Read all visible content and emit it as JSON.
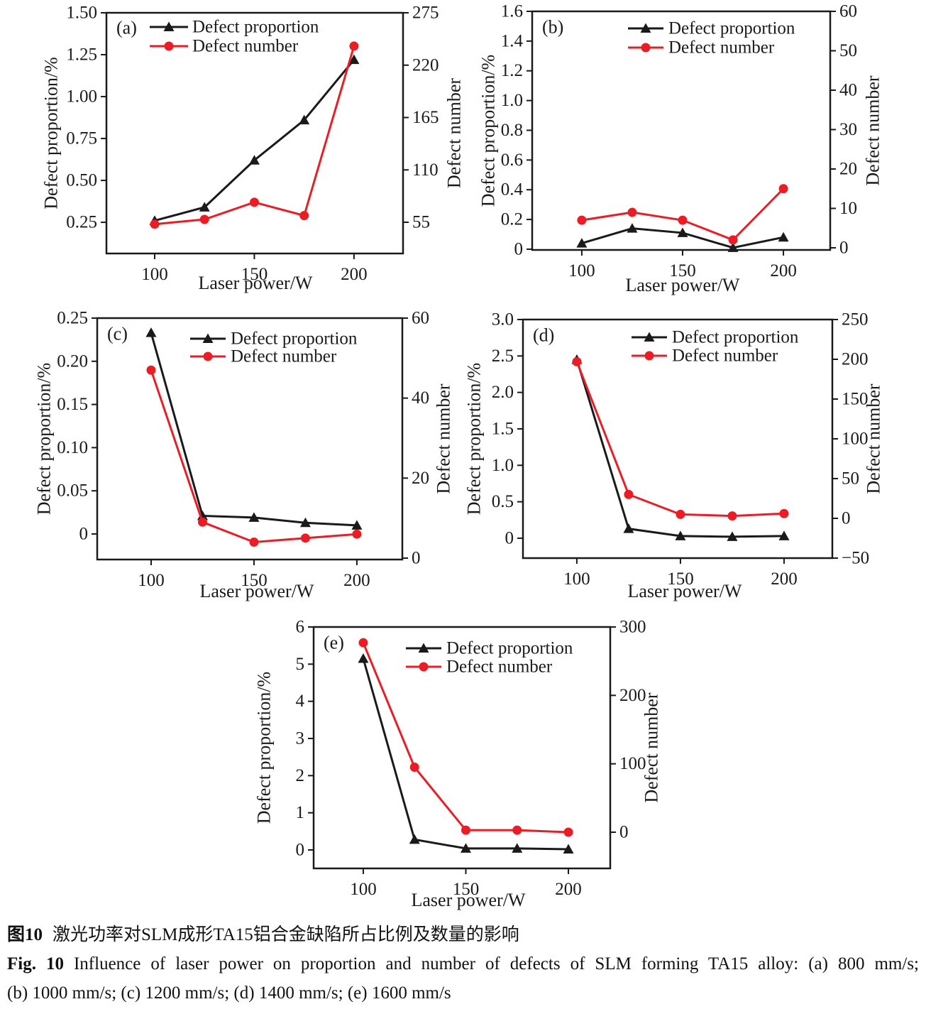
{
  "caption": {
    "zh_label": "图10",
    "zh_text": "激光功率对SLM成形TA15铝合金缺陷所占比例及数量的影响",
    "en_label": "Fig. 10",
    "en_text": "Influence of laser power on proportion and number of defects of SLM forming TA15 alloy: (a) 800 mm/s;",
    "en_line2": "(b) 1000 mm/s; (c) 1200 mm/s;    (d) 1400 mm/s; (e) 1600 mm/s"
  },
  "colors": {
    "proportion": "#1a1a1a",
    "number": "#ed1c24",
    "frame": "#1a1a1a"
  },
  "legend_labels": [
    "Defect proportion",
    "Defect number"
  ],
  "chart_data": [
    {
      "id": "a",
      "panel": "(a)",
      "type": "line",
      "x_label": "Laser power/W",
      "x_values": [
        100,
        125,
        150,
        175,
        200
      ],
      "x_tick_values": [
        100,
        150,
        200
      ],
      "x_tick_labels": [
        "100",
        "150",
        "200"
      ],
      "x_range": [
        75.8,
        224.6
      ],
      "left_axis": {
        "label": "Defect proportion/%",
        "tick_values": [
          0.25,
          0.5,
          0.75,
          1.0,
          1.25,
          1.5
        ],
        "tick_labels": [
          "0.25",
          "0.50",
          "0.75",
          "1.00",
          "1.25",
          "1.50"
        ],
        "range": [
          0.064,
          1.5
        ]
      },
      "right_axis": {
        "label": "Defect number",
        "tick_values": [
          55,
          110,
          165,
          220,
          275
        ],
        "tick_labels": [
          "55",
          "110",
          "165",
          "220",
          "275"
        ],
        "range": [
          22.2,
          275
        ]
      },
      "series": [
        {
          "name": "Defect proportion",
          "axis": "left",
          "marker": "triangle",
          "color": "#1a1a1a",
          "values": [
            0.26,
            0.34,
            0.62,
            0.86,
            1.22
          ]
        },
        {
          "name": "Defect number",
          "axis": "right",
          "marker": "circle",
          "color": "#ed1c24",
          "values": [
            53,
            58,
            76,
            62,
            240
          ]
        }
      ]
    },
    {
      "id": "b",
      "panel": "(b)",
      "type": "line",
      "x_label": "Laser power/W",
      "x_values": [
        100,
        125,
        150,
        175,
        200
      ],
      "x_tick_values": [
        100,
        150,
        200
      ],
      "x_tick_labels": [
        "100",
        "150",
        "200"
      ],
      "x_range": [
        75.4,
        223.2
      ],
      "left_axis": {
        "label": "Defect proportion/%",
        "tick_values": [
          0,
          0.2,
          0.4,
          0.6,
          0.8,
          1.0,
          1.2,
          1.4,
          1.6
        ],
        "tick_labels": [
          "0",
          "0.2",
          "0.4",
          "0.6",
          "0.8",
          "1.0",
          "1.2",
          "1.4",
          "1.6"
        ],
        "range": [
          -0.005,
          1.6
        ]
      },
      "right_axis": {
        "label": "Defect number",
        "tick_values": [
          0,
          10,
          20,
          30,
          40,
          50,
          60
        ],
        "tick_labels": [
          "0",
          "10",
          "20",
          "30",
          "40",
          "50",
          "60"
        ],
        "range": [
          -0.54,
          60
        ]
      },
      "series": [
        {
          "name": "Defect proportion",
          "axis": "left",
          "marker": "triangle",
          "color": "#1a1a1a",
          "values": [
            0.04,
            0.14,
            0.11,
            0.01,
            0.08
          ]
        },
        {
          "name": "Defect number",
          "axis": "right",
          "marker": "circle",
          "color": "#ed1c24",
          "values": [
            7,
            9,
            7,
            2,
            15
          ]
        }
      ]
    },
    {
      "id": "c",
      "panel": "(c)",
      "type": "line",
      "x_label": "Laser power/W",
      "x_values": [
        100,
        125,
        150,
        175,
        200
      ],
      "x_tick_values": [
        100,
        150,
        200
      ],
      "x_tick_labels": [
        "100",
        "150",
        "200"
      ],
      "x_range": [
        73.8,
        222.1
      ],
      "left_axis": {
        "label": "Defect proportion/%",
        "tick_values": [
          0,
          0.05,
          0.1,
          0.15,
          0.2,
          0.25
        ],
        "tick_labels": [
          "0",
          "0.05",
          "0.10",
          "0.15",
          "0.20",
          "0.25"
        ],
        "range": [
          -0.0296,
          0.25
        ]
      },
      "right_axis": {
        "label": "Defect number",
        "tick_values": [
          0,
          20,
          40,
          60
        ],
        "tick_labels": [
          "0",
          "20",
          "40",
          "60"
        ],
        "range": [
          -0.355,
          60
        ]
      },
      "series": [
        {
          "name": "Defect proportion",
          "axis": "left",
          "marker": "triangle",
          "color": "#1a1a1a",
          "values": [
            0.233,
            0.021,
            0.019,
            0.013,
            0.01
          ]
        },
        {
          "name": "Defect number",
          "axis": "right",
          "marker": "circle",
          "color": "#ed1c24",
          "values": [
            47,
            9,
            4,
            5,
            6
          ]
        }
      ]
    },
    {
      "id": "d",
      "panel": "(d)",
      "type": "line",
      "x_label": "Laser power/W",
      "x_values": [
        100,
        125,
        150,
        175,
        200
      ],
      "x_tick_values": [
        100,
        150,
        200
      ],
      "x_tick_labels": [
        "100",
        "150",
        "200"
      ],
      "x_range": [
        74.0,
        223.3
      ],
      "left_axis": {
        "label": "Defect proportion/%",
        "tick_values": [
          0,
          0.5,
          1.0,
          1.5,
          2.0,
          2.5,
          3.0
        ],
        "tick_labels": [
          "0",
          "0.5",
          "1.0",
          "1.5",
          "2.0",
          "2.5",
          "3.0"
        ],
        "range": [
          -0.273,
          3.0
        ]
      },
      "right_axis": {
        "label": "Defect number",
        "tick_values": [
          -50,
          0,
          50,
          100,
          150,
          200,
          250
        ],
        "tick_labels": [
          "−50",
          "0",
          "50",
          "100",
          "150",
          "200",
          "250"
        ],
        "range": [
          -50,
          250
        ]
      },
      "series": [
        {
          "name": "Defect proportion",
          "axis": "left",
          "marker": "triangle",
          "color": "#1a1a1a",
          "values": [
            2.45,
            0.13,
            0.03,
            0.02,
            0.03
          ]
        },
        {
          "name": "Defect number",
          "axis": "right",
          "marker": "circle",
          "color": "#ed1c24",
          "values": [
            197,
            30,
            5,
            3,
            6
          ]
        }
      ]
    },
    {
      "id": "e",
      "panel": "(e)",
      "type": "line",
      "x_label": "Laser power/W",
      "x_values": [
        100,
        125,
        150,
        175,
        200
      ],
      "x_tick_values": [
        100,
        150,
        200
      ],
      "x_tick_labels": [
        "100",
        "150",
        "200"
      ],
      "x_range": [
        75.8,
        220.4
      ],
      "left_axis": {
        "label": "Defect proportion/%",
        "tick_values": [
          0,
          1,
          2,
          3,
          4,
          5,
          6
        ],
        "tick_labels": [
          "0",
          "1",
          "2",
          "3",
          "4",
          "5",
          "6"
        ],
        "range": [
          -0.497,
          6
        ]
      },
      "right_axis": {
        "label": "Defect number",
        "tick_values": [
          0,
          100,
          200,
          300
        ],
        "tick_labels": [
          "0",
          "100",
          "200",
          "300"
        ],
        "range": [
          -52.9,
          300
        ]
      },
      "series": [
        {
          "name": "Defect proportion",
          "axis": "left",
          "marker": "triangle",
          "color": "#1a1a1a",
          "values": [
            5.15,
            0.28,
            0.04,
            0.04,
            0.02
          ]
        },
        {
          "name": "Defect number",
          "axis": "right",
          "marker": "circle",
          "color": "#ed1c24",
          "values": [
            277,
            95,
            3,
            3,
            0
          ]
        }
      ]
    }
  ]
}
